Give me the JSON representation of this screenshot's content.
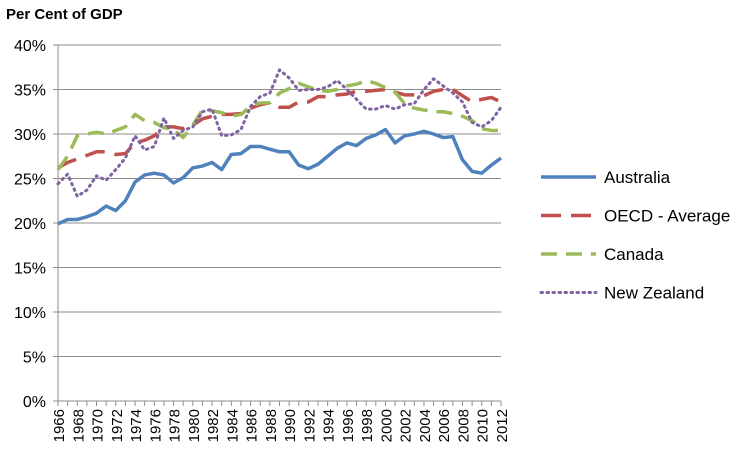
{
  "chart_data": {
    "type": "line",
    "title": "Per Cent of GDP",
    "xlabel": "",
    "ylabel": "",
    "ylim": [
      0,
      40
    ],
    "y_ticks": [
      "0%",
      "5%",
      "10%",
      "15%",
      "20%",
      "25%",
      "30%",
      "35%",
      "40%"
    ],
    "grid": "horizontal",
    "legend_position": "right",
    "x": [
      1966,
      1967,
      1968,
      1969,
      1970,
      1971,
      1972,
      1973,
      1974,
      1975,
      1976,
      1977,
      1978,
      1979,
      1980,
      1981,
      1982,
      1983,
      1984,
      1985,
      1986,
      1987,
      1988,
      1989,
      1990,
      1991,
      1992,
      1993,
      1994,
      1995,
      1996,
      1997,
      1998,
      1999,
      2000,
      2001,
      2002,
      2003,
      2004,
      2005,
      2006,
      2007,
      2008,
      2009,
      2010,
      2011,
      2012
    ],
    "x_tick_labels": [
      "1966",
      "1968",
      "1970",
      "1972",
      "1974",
      "1976",
      "1978",
      "1980",
      "1982",
      "1984",
      "1986",
      "1988",
      "1990",
      "1992",
      "1994",
      "1996",
      "1998",
      "2000",
      "2002",
      "2004",
      "2006",
      "2008",
      "2010",
      "2012"
    ],
    "series": [
      {
        "name": "Australia",
        "color": "#4f81bd",
        "style": "solid",
        "values": [
          19.9,
          20.4,
          20.4,
          20.7,
          21.1,
          21.9,
          21.4,
          22.5,
          24.6,
          25.4,
          25.6,
          25.4,
          24.5,
          25.1,
          26.2,
          26.4,
          26.8,
          26.0,
          27.7,
          27.8,
          28.6,
          28.6,
          28.3,
          28.0,
          28.0,
          26.5,
          26.1,
          26.6,
          27.5,
          28.4,
          29.0,
          28.7,
          29.5,
          29.9,
          30.5,
          29.0,
          29.8,
          30.0,
          30.3,
          30.0,
          29.6,
          29.7,
          27.1,
          25.8,
          25.6,
          26.5,
          27.3
        ]
      },
      {
        "name": "OECD - Average",
        "color": "#c0504d",
        "style": "longdash",
        "values": [
          26.2,
          26.8,
          27.2,
          27.6,
          28.0,
          28.0,
          27.7,
          27.8,
          29.0,
          29.3,
          29.8,
          30.8,
          30.8,
          30.6,
          31.0,
          31.7,
          32.0,
          32.2,
          32.2,
          32.3,
          32.9,
          33.3,
          33.5,
          33.0,
          33.0,
          33.6,
          33.6,
          34.2,
          34.2,
          34.4,
          34.5,
          34.8,
          34.8,
          34.9,
          35.0,
          34.7,
          34.4,
          34.4,
          34.3,
          34.8,
          35.0,
          35.0,
          34.3,
          33.6,
          33.9,
          34.1,
          33.6
        ]
      },
      {
        "name": "Canada",
        "color": "#9bbb59",
        "style": "dash",
        "values": [
          26.0,
          27.5,
          29.8,
          30.0,
          30.2,
          30.0,
          30.4,
          30.8,
          32.2,
          31.5,
          31.3,
          30.7,
          30.5,
          29.6,
          31.0,
          32.7,
          32.6,
          32.4,
          32.0,
          32.2,
          33.1,
          33.5,
          33.5,
          34.6,
          35.1,
          35.7,
          35.3,
          34.9,
          34.8,
          35.0,
          35.4,
          35.6,
          36.0,
          35.7,
          35.2,
          34.7,
          33.4,
          32.9,
          32.7,
          32.5,
          32.5,
          32.3,
          32.0,
          31.5,
          30.6,
          30.4,
          30.4
        ]
      },
      {
        "name": "New Zealand",
        "color": "#8064a2",
        "style": "dotted",
        "values": [
          24.4,
          25.5,
          23.0,
          23.7,
          25.3,
          24.8,
          26.0,
          27.3,
          29.8,
          28.2,
          28.6,
          31.8,
          29.5,
          30.4,
          30.8,
          32.5,
          32.8,
          29.8,
          29.9,
          30.5,
          33.1,
          34.2,
          34.6,
          37.2,
          36.3,
          34.9,
          35.0,
          35.0,
          35.3,
          36.0,
          35.0,
          33.9,
          32.8,
          32.8,
          33.2,
          32.8,
          33.3,
          33.4,
          35.0,
          36.2,
          35.4,
          34.6,
          33.6,
          31.3,
          30.8,
          31.5,
          33.0
        ]
      }
    ]
  }
}
